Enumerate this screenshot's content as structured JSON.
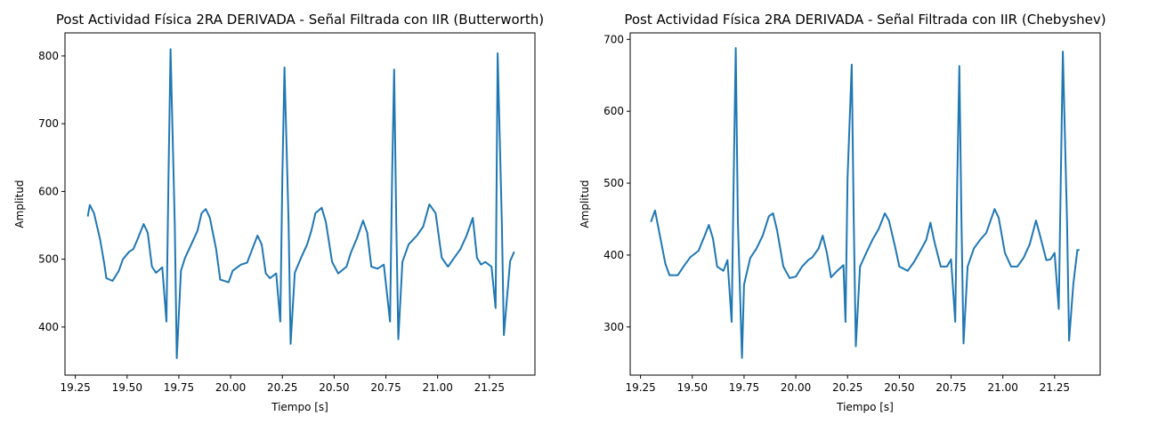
{
  "chart_data": [
    {
      "type": "line",
      "title": "Post Actividad Física 2RA DERIVADA - Señal Filtrada con IIR (Butterworth)",
      "xlabel": "Tiempo [s]",
      "ylabel": "Amplitud",
      "color": "#1f77b4",
      "x": [
        19.31,
        19.32,
        19.34,
        19.37,
        19.39,
        19.4,
        19.43,
        19.46,
        19.48,
        19.51,
        19.53,
        19.55,
        19.58,
        19.6,
        19.62,
        19.64,
        19.67,
        19.69,
        19.7,
        19.71,
        19.73,
        19.74,
        19.76,
        19.78,
        19.81,
        19.84,
        19.86,
        19.88,
        19.9,
        19.93,
        19.95,
        19.99,
        20.01,
        20.05,
        20.08,
        20.1,
        20.13,
        20.15,
        20.17,
        20.19,
        20.22,
        20.24,
        20.25,
        20.26,
        20.28,
        20.29,
        20.31,
        20.34,
        20.37,
        20.39,
        20.41,
        20.44,
        20.46,
        20.49,
        20.52,
        20.56,
        20.58,
        20.61,
        20.64,
        20.66,
        20.68,
        20.71,
        20.74,
        20.77,
        20.78,
        20.79,
        20.8,
        20.81,
        20.83,
        20.86,
        20.9,
        20.93,
        20.96,
        20.99,
        21.02,
        21.05,
        21.08,
        21.11,
        21.14,
        21.17,
        21.19,
        21.21,
        21.23,
        21.26,
        21.28,
        21.29,
        21.31,
        21.32,
        21.35,
        21.37
      ],
      "values": [
        563,
        580,
        568,
        529,
        493,
        472,
        468,
        483,
        500,
        511,
        515,
        529,
        552,
        539,
        489,
        480,
        488,
        408,
        620,
        810,
        555,
        354,
        483,
        502,
        522,
        542,
        568,
        574,
        561,
        515,
        470,
        466,
        483,
        492,
        495,
        511,
        535,
        522,
        479,
        472,
        479,
        408,
        620,
        783,
        555,
        375,
        480,
        502,
        522,
        542,
        568,
        576,
        555,
        496,
        479,
        489,
        509,
        531,
        557,
        539,
        489,
        486,
        492,
        408,
        620,
        780,
        555,
        382,
        496,
        522,
        535,
        548,
        581,
        568,
        502,
        489,
        502,
        515,
        535,
        561,
        502,
        492,
        496,
        489,
        428,
        804,
        555,
        388,
        497,
        511
      ],
      "xlim": [
        19.2,
        21.47
      ],
      "ylim": [
        329,
        834
      ],
      "xticks": [
        19.25,
        {
          "value": 19.5,
          "label": "19.50"
        },
        19.75,
        {
          "value": 20,
          "label": "20.00"
        },
        20.25,
        {
          "value": 20.5,
          "label": "20.50"
        },
        20.75,
        {
          "value": 21,
          "label": "21.00"
        },
        21.25
      ],
      "yticks": [
        400,
        500,
        600,
        700,
        800
      ]
    },
    {
      "type": "line",
      "title": "Post Actividad Física 2RA DERIVADA - Señal Filtrada con IIR (Chebyshev)",
      "xlabel": "Tiempo [s]",
      "ylabel": "Amplitud",
      "color": "#1f77b4",
      "x": [
        19.3,
        19.32,
        19.37,
        19.39,
        19.43,
        19.46,
        19.49,
        19.53,
        19.56,
        19.58,
        19.6,
        19.62,
        19.65,
        19.67,
        19.69,
        19.7,
        19.71,
        19.72,
        19.74,
        19.75,
        19.78,
        19.81,
        19.84,
        19.87,
        19.89,
        19.91,
        19.94,
        19.97,
        20.0,
        20.03,
        20.06,
        20.08,
        20.11,
        20.13,
        20.15,
        20.17,
        20.2,
        20.23,
        20.24,
        20.25,
        20.27,
        20.28,
        20.29,
        20.31,
        20.34,
        20.37,
        20.4,
        20.43,
        20.45,
        20.48,
        20.5,
        20.54,
        20.57,
        20.6,
        20.63,
        20.65,
        20.67,
        20.7,
        20.73,
        20.75,
        20.77,
        20.78,
        20.79,
        20.8,
        20.81,
        20.83,
        20.86,
        20.89,
        20.92,
        20.96,
        20.98,
        21.01,
        21.04,
        21.07,
        21.1,
        21.13,
        21.16,
        21.18,
        21.21,
        21.23,
        21.25,
        21.27,
        21.28,
        21.29,
        21.31,
        21.32,
        21.34,
        21.36,
        21.37
      ],
      "values": [
        446,
        462,
        388,
        372,
        372,
        385,
        397,
        406,
        427,
        442,
        423,
        384,
        378,
        393,
        307,
        507,
        688,
        446,
        257,
        359,
        396,
        409,
        427,
        454,
        458,
        434,
        384,
        368,
        370,
        384,
        393,
        397,
        409,
        427,
        403,
        369,
        378,
        386,
        307,
        507,
        665,
        446,
        273,
        384,
        403,
        421,
        436,
        458,
        448,
        411,
        384,
        378,
        390,
        405,
        421,
        445,
        418,
        384,
        384,
        394,
        307,
        507,
        663,
        446,
        277,
        384,
        409,
        421,
        431,
        464,
        452,
        403,
        384,
        384,
        396,
        415,
        448,
        427,
        393,
        394,
        403,
        325,
        507,
        683,
        446,
        281,
        359,
        407,
        407
      ],
      "xlim": [
        19.2,
        21.47
      ],
      "ylim": [
        233,
        709
      ],
      "xticks": [
        19.25,
        {
          "value": 19.5,
          "label": "19.50"
        },
        19.75,
        {
          "value": 20,
          "label": "20.00"
        },
        20.25,
        {
          "value": 20.5,
          "label": "20.50"
        },
        20.75,
        {
          "value": 21,
          "label": "21.00"
        },
        21.25
      ],
      "yticks": [
        300,
        400,
        500,
        600,
        700
      ]
    }
  ]
}
